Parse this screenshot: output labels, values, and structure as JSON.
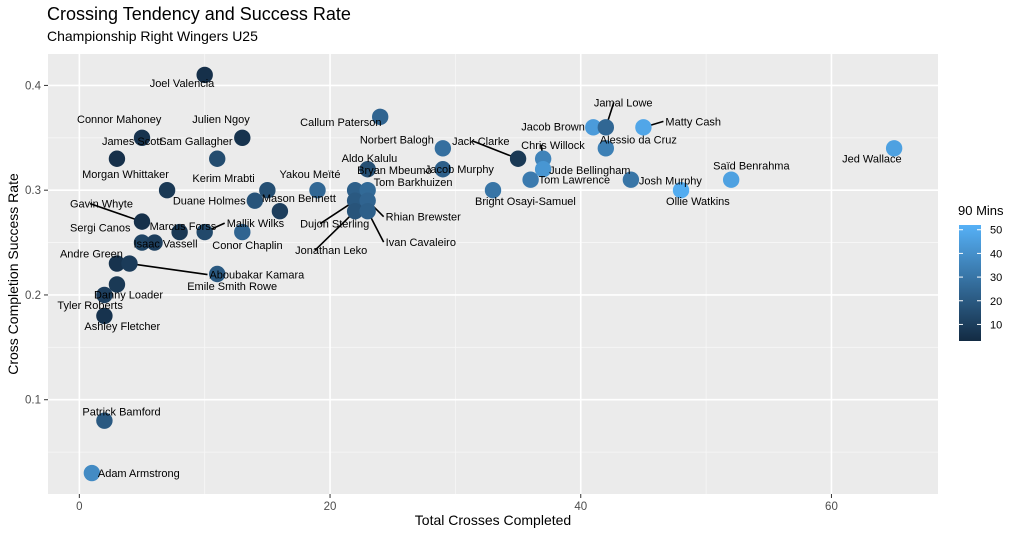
{
  "chart_data": {
    "type": "scatter",
    "title": "Crossing Tendency and Success Rate",
    "subtitle": "Championship Right Wingers U25",
    "xlabel": "Total Crosses Completed",
    "ylabel": "Cross Completion Success Rate",
    "xlim": [
      -2.5,
      68.5
    ],
    "ylim": [
      0.01,
      0.43
    ],
    "x_ticks": [
      0,
      20,
      40,
      60
    ],
    "y_ticks": [
      0.1,
      0.2,
      0.3,
      0.4
    ],
    "y_tick_labels": [
      "0.1",
      "0.2",
      "0.3",
      "0.4"
    ],
    "grid": true,
    "legend": {
      "title": "90 Mins",
      "placement": "right",
      "min": 3,
      "max": 52,
      "ticks": [
        10,
        20,
        30,
        40,
        50
      ],
      "color_low": "#132b43",
      "color_high": "#56b1f7"
    },
    "points": [
      {
        "name": "Joel Valencia",
        "x": 10,
        "y": 0.41,
        "mins": 5
      },
      {
        "name": "Connor Mahoney",
        "x": 5,
        "y": 0.35,
        "mins": 6
      },
      {
        "name": "Julien Ngoy",
        "x": 13,
        "y": 0.35,
        "mins": 6
      },
      {
        "name": "James Scott",
        "x": 3,
        "y": 0.33,
        "mins": 5
      },
      {
        "name": "Sam Gallagher",
        "x": 11,
        "y": 0.33,
        "mins": 15
      },
      {
        "name": "Callum Paterson",
        "x": 24,
        "y": 0.37,
        "mins": 24
      },
      {
        "name": "Morgan Whittaker",
        "x": 7,
        "y": 0.3,
        "mins": 8
      },
      {
        "name": "Kerim Mrabti",
        "x": 15,
        "y": 0.3,
        "mins": 16
      },
      {
        "name": "Yakou Meïté",
        "x": 19,
        "y": 0.3,
        "mins": 25
      },
      {
        "name": "Duane Holmes",
        "x": 14,
        "y": 0.29,
        "mins": 18
      },
      {
        "name": "Mason Bennett",
        "x": 16,
        "y": 0.28,
        "mins": 10
      },
      {
        "name": "Gavin Whyte",
        "x": 5,
        "y": 0.27,
        "mins": 5
      },
      {
        "name": "Marcus Forss",
        "x": 8,
        "y": 0.26,
        "mins": 8
      },
      {
        "name": "Mallik Wilks",
        "x": 10,
        "y": 0.26,
        "mins": 14
      },
      {
        "name": "Conor Chaplin",
        "x": 13,
        "y": 0.26,
        "mins": 24
      },
      {
        "name": "Sergi Canos",
        "x": 5,
        "y": 0.25,
        "mins": 12
      },
      {
        "name": "Isaac Vassell",
        "x": 6,
        "y": 0.25,
        "mins": 10
      },
      {
        "name": "Andre Green",
        "x": 3,
        "y": 0.23,
        "mins": 6
      },
      {
        "name": "Aboubakar Kamara",
        "x": 4,
        "y": 0.23,
        "mins": 9
      },
      {
        "name": "Emile Smith Rowe",
        "x": 11,
        "y": 0.22,
        "mins": 20
      },
      {
        "name": "Danny Loader",
        "x": 3,
        "y": 0.21,
        "mins": 8
      },
      {
        "name": "Tyler Roberts",
        "x": 2,
        "y": 0.2,
        "mins": 10
      },
      {
        "name": "Ashley Fletcher",
        "x": 2,
        "y": 0.18,
        "mins": 6
      },
      {
        "name": "Patrick Bamford",
        "x": 2,
        "y": 0.08,
        "mins": 20
      },
      {
        "name": "Adam Armstrong",
        "x": 1,
        "y": 0.03,
        "mins": 38
      },
      {
        "name": "Aldo Kalulu",
        "x": 23,
        "y": 0.32,
        "mins": 16
      },
      {
        "name": "Bryan Mbeumo",
        "x": 22,
        "y": 0.3,
        "mins": 22
      },
      {
        "name": "Tom Barkhuizen",
        "x": 23,
        "y": 0.3,
        "mins": 26
      },
      {
        "name": "Dujon Sterling",
        "x": 22,
        "y": 0.29,
        "mins": 20
      },
      {
        "name": "Rhian Brewster",
        "x": 23,
        "y": 0.29,
        "mins": 24
      },
      {
        "name": "Jonathan Leko",
        "x": 22,
        "y": 0.28,
        "mins": 18
      },
      {
        "name": "Ivan Cavaleiro",
        "x": 23,
        "y": 0.28,
        "mins": 22
      },
      {
        "name": "Norbert Balogh",
        "x": 29,
        "y": 0.34,
        "mins": 28
      },
      {
        "name": "Jacob Murphy",
        "x": 29,
        "y": 0.32,
        "mins": 22
      },
      {
        "name": "Jack Clarke",
        "x": 35,
        "y": 0.33,
        "mins": 8
      },
      {
        "name": "Chris Willock",
        "x": 37,
        "y": 0.33,
        "mins": 35
      },
      {
        "name": "Jude Bellingham",
        "x": 37,
        "y": 0.32,
        "mins": 42
      },
      {
        "name": "Bright Osayi-Samuel",
        "x": 33,
        "y": 0.3,
        "mins": 30
      },
      {
        "name": "Tom Lawrence",
        "x": 36,
        "y": 0.31,
        "mins": 32
      },
      {
        "name": "Jacob Brown",
        "x": 41,
        "y": 0.36,
        "mins": 44
      },
      {
        "name": "Jamal Lowe",
        "x": 42,
        "y": 0.36,
        "mins": 25
      },
      {
        "name": "Matty Cash",
        "x": 45,
        "y": 0.36,
        "mins": 48
      },
      {
        "name": "Alessio da Cruz",
        "x": 42,
        "y": 0.34,
        "mins": 34
      },
      {
        "name": "Josh Murphy",
        "x": 44,
        "y": 0.31,
        "mins": 30
      },
      {
        "name": "Ollie Watkins",
        "x": 48,
        "y": 0.3,
        "mins": 50
      },
      {
        "name": "Saïd Benrahma",
        "x": 52,
        "y": 0.31,
        "mins": 46
      },
      {
        "name": "Jed Wallace",
        "x": 65,
        "y": 0.34,
        "mins": 46
      }
    ]
  }
}
